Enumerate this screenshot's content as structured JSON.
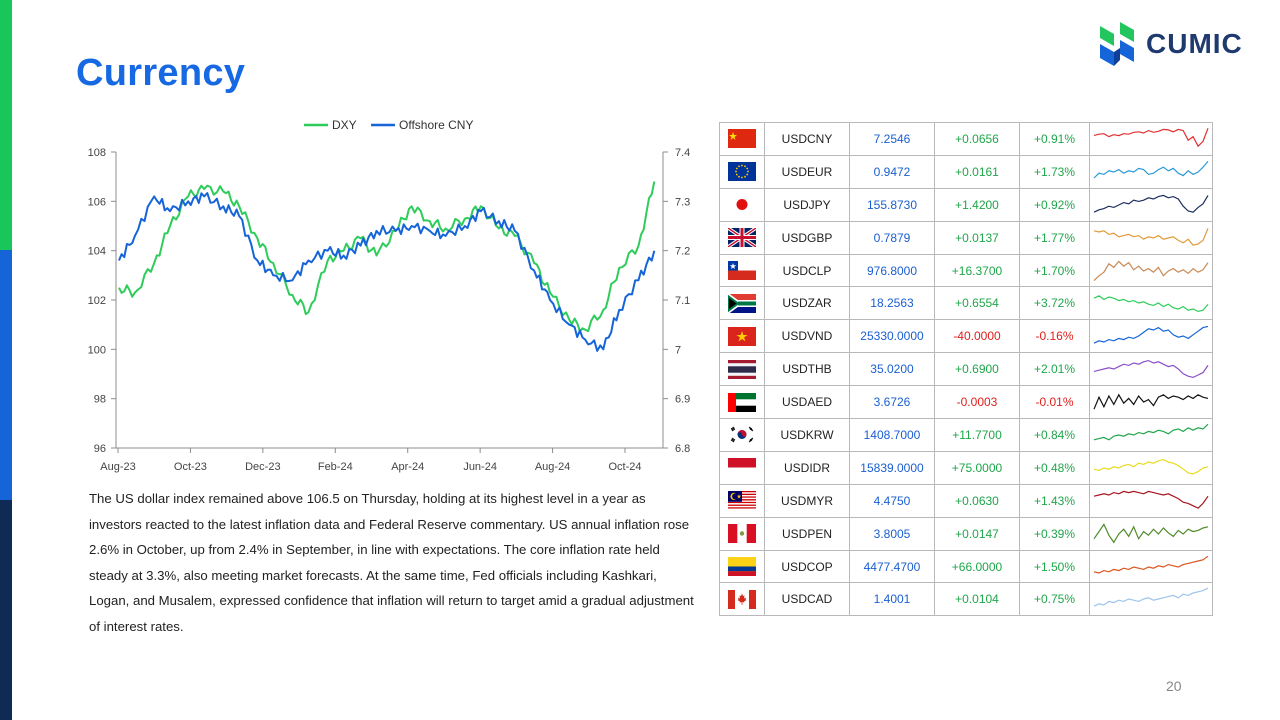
{
  "page": {
    "title": "Currency",
    "brand": "CUMIC",
    "page_number": "20",
    "description": "The US dollar index remained above 106.5 on Thursday, holding at its highest level in a year as investors reacted to the latest inflation data and Federal Reserve commentary. US annual inflation rose 2.6% in October, up from 2.4% in September, in line with expectations. The core inflation rate held steady at 3.3%, also meeting market forecasts. At the same time, Fed officials including Kashkari, Logan, and Musalem, expressed confidence that inflation will return to target amid a gradual adjustment of interest rates."
  },
  "colors": {
    "accent": "#1668e3",
    "dxy": "#2ecc5a",
    "cny": "#1565d8",
    "positive": "#1fa64a",
    "negative": "#e0201b"
  },
  "chart_data": {
    "type": "line",
    "legend_position": "top",
    "grid": false,
    "x_ticks": [
      "Aug-23",
      "Oct-23",
      "Dec-23",
      "Feb-24",
      "Apr-24",
      "Jun-24",
      "Aug-24",
      "Oct-24"
    ],
    "x_range": [
      "Aug-23",
      "Nov-24"
    ],
    "y_left": {
      "range": [
        96,
        108
      ],
      "ticks": [
        "108",
        "106",
        "104",
        "102",
        "100",
        "98",
        "96"
      ]
    },
    "y_right": {
      "range": [
        6.8,
        7.4
      ],
      "ticks": [
        "7.4",
        "7.3",
        "7.2",
        "7.1",
        "7",
        "6.9",
        "6.8"
      ]
    },
    "series": [
      {
        "name": "DXY",
        "axis": "left",
        "color": "#2ecc5a",
        "x": [
          "2023-08",
          "2023-08",
          "2023-09",
          "2023-09",
          "2023-10",
          "2023-10",
          "2023-11",
          "2023-11",
          "2023-12",
          "2023-12",
          "2024-01",
          "2024-01",
          "2024-02",
          "2024-02",
          "2024-03",
          "2024-03",
          "2024-04",
          "2024-04",
          "2024-05",
          "2024-05",
          "2024-06",
          "2024-06",
          "2024-07",
          "2024-07",
          "2024-08",
          "2024-08",
          "2024-09",
          "2024-09",
          "2024-10",
          "2024-10",
          "2024-11",
          "2024-11"
        ],
        "values": [
          102.5,
          102.3,
          103.5,
          105.0,
          106.2,
          106.5,
          106.4,
          105.8,
          104.5,
          103.5,
          102.2,
          101.5,
          103.6,
          104.0,
          104.5,
          103.8,
          104.8,
          105.8,
          105.2,
          104.9,
          105.3,
          105.8,
          104.9,
          104.6,
          103.5,
          102.3,
          101.2,
          100.8,
          101.6,
          103.3,
          104.2,
          106.8
        ]
      },
      {
        "name": "Offshore CNY",
        "axis": "right",
        "color": "#1565d8",
        "x": [
          "2023-08",
          "2023-08",
          "2023-09",
          "2023-09",
          "2023-10",
          "2023-10",
          "2023-11",
          "2023-11",
          "2023-12",
          "2023-12",
          "2024-01",
          "2024-01",
          "2024-02",
          "2024-02",
          "2024-03",
          "2024-03",
          "2024-04",
          "2024-04",
          "2024-05",
          "2024-05",
          "2024-06",
          "2024-06",
          "2024-07",
          "2024-07",
          "2024-08",
          "2024-08",
          "2024-09",
          "2024-09",
          "2024-10",
          "2024-10",
          "2024-11",
          "2024-11"
        ],
        "values": [
          7.18,
          7.23,
          7.31,
          7.28,
          7.3,
          7.31,
          7.29,
          7.27,
          7.18,
          7.15,
          7.14,
          7.18,
          7.2,
          7.19,
          7.21,
          7.24,
          7.24,
          7.25,
          7.24,
          7.23,
          7.25,
          7.28,
          7.26,
          7.24,
          7.16,
          7.1,
          7.05,
          7.02,
          7.0,
          7.08,
          7.14,
          7.2
        ]
      }
    ]
  },
  "fx_table": {
    "rows": [
      {
        "flag": "cn-flag",
        "pair": "USDCNY",
        "rate": "7.2546",
        "change": "+0.0656",
        "pct": "+0.91%",
        "color": "#e03030",
        "spark": [
          0.35,
          0.3,
          0.28,
          0.4,
          0.32,
          0.36,
          0.28,
          0.3,
          0.22,
          0.2,
          0.25,
          0.15,
          0.22,
          0.18,
          0.1,
          0.12,
          0.2,
          0.1,
          0.15,
          0.55,
          0.4,
          0.8,
          0.6,
          0.05
        ]
      },
      {
        "flag": "eu-flag",
        "pair": "USDEUR",
        "rate": "0.9472",
        "change": "+0.0161",
        "pct": "+1.73%",
        "color": "#2a9bd6",
        "spark": [
          0.75,
          0.55,
          0.6,
          0.45,
          0.5,
          0.4,
          0.55,
          0.45,
          0.5,
          0.35,
          0.4,
          0.6,
          0.55,
          0.4,
          0.3,
          0.45,
          0.35,
          0.55,
          0.65,
          0.45,
          0.6,
          0.5,
          0.3,
          0.05
        ]
      },
      {
        "flag": "jp-flag",
        "pair": "USDJPY",
        "rate": "155.8730",
        "change": "+1.4200",
        "pct": "+0.92%",
        "color": "#1b2f5e",
        "spark": [
          0.8,
          0.7,
          0.65,
          0.55,
          0.6,
          0.5,
          0.4,
          0.45,
          0.3,
          0.35,
          0.3,
          0.2,
          0.25,
          0.15,
          0.1,
          0.2,
          0.15,
          0.25,
          0.55,
          0.75,
          0.8,
          0.6,
          0.45,
          0.1
        ]
      },
      {
        "flag": "gb-flag",
        "pair": "USDGBP",
        "rate": "0.7879",
        "change": "+0.0137",
        "pct": "+1.77%",
        "color": "#e39a3a",
        "spark": [
          0.2,
          0.25,
          0.2,
          0.35,
          0.3,
          0.45,
          0.4,
          0.35,
          0.45,
          0.4,
          0.55,
          0.45,
          0.5,
          0.4,
          0.55,
          0.5,
          0.45,
          0.6,
          0.7,
          0.55,
          0.8,
          0.75,
          0.6,
          0.1
        ]
      },
      {
        "flag": "cl-flag",
        "pair": "USDCLP",
        "rate": "976.8000",
        "change": "+16.3700",
        "pct": "+1.70%",
        "color": "#c98a55",
        "spark": [
          0.9,
          0.7,
          0.55,
          0.2,
          0.35,
          0.1,
          0.3,
          0.15,
          0.45,
          0.3,
          0.5,
          0.4,
          0.55,
          0.35,
          0.7,
          0.5,
          0.4,
          0.55,
          0.45,
          0.6,
          0.4,
          0.55,
          0.45,
          0.15
        ]
      },
      {
        "flag": "za-flag",
        "pair": "USDZAR",
        "rate": "18.2563",
        "change": "+0.6554",
        "pct": "+3.72%",
        "color": "#2ecc5a",
        "spark": [
          0.3,
          0.2,
          0.35,
          0.25,
          0.3,
          0.4,
          0.35,
          0.45,
          0.4,
          0.5,
          0.45,
          0.55,
          0.6,
          0.5,
          0.65,
          0.55,
          0.7,
          0.75,
          0.65,
          0.8,
          0.75,
          0.85,
          0.8,
          0.55
        ]
      },
      {
        "flag": "vn-flag",
        "pair": "USDVND",
        "rate": "25330.0000",
        "change": "-40.0000",
        "pct": "-0.16%",
        "color": "#1565d8",
        "spark": [
          0.8,
          0.7,
          0.75,
          0.65,
          0.7,
          0.6,
          0.65,
          0.55,
          0.6,
          0.5,
          0.35,
          0.2,
          0.25,
          0.15,
          0.3,
          0.25,
          0.45,
          0.55,
          0.5,
          0.6,
          0.45,
          0.3,
          0.15,
          0.1
        ]
      },
      {
        "flag": "th-flag",
        "pair": "USDTHB",
        "rate": "35.0200",
        "change": "+0.6900",
        "pct": "+2.01%",
        "color": "#8a4fc9",
        "spark": [
          0.6,
          0.55,
          0.5,
          0.45,
          0.5,
          0.4,
          0.3,
          0.35,
          0.25,
          0.3,
          0.2,
          0.15,
          0.25,
          0.2,
          0.3,
          0.4,
          0.35,
          0.5,
          0.7,
          0.8,
          0.85,
          0.75,
          0.65,
          0.35
        ]
      },
      {
        "flag": "ae-flag",
        "pair": "USDAED",
        "rate": "3.6726",
        "change": "-0.0003",
        "pct": "-0.01%",
        "color": "#111111",
        "spark": [
          0.8,
          0.3,
          0.7,
          0.25,
          0.6,
          0.2,
          0.55,
          0.35,
          0.6,
          0.25,
          0.5,
          0.4,
          0.65,
          0.3,
          0.2,
          0.35,
          0.25,
          0.3,
          0.4,
          0.25,
          0.35,
          0.2,
          0.3,
          0.35
        ]
      },
      {
        "flag": "kr-flag",
        "pair": "USDKRW",
        "rate": "1408.7000",
        "change": "+11.7700",
        "pct": "+0.84%",
        "color": "#1fa64a",
        "spark": [
          0.7,
          0.65,
          0.6,
          0.7,
          0.55,
          0.5,
          0.55,
          0.45,
          0.5,
          0.4,
          0.45,
          0.35,
          0.4,
          0.3,
          0.35,
          0.45,
          0.3,
          0.25,
          0.35,
          0.2,
          0.3,
          0.2,
          0.25,
          0.05
        ]
      },
      {
        "flag": "id-flag",
        "pair": "USDIDR",
        "rate": "15839.0000",
        "change": "+75.0000",
        "pct": "+0.48%",
        "color": "#e8dc1e",
        "spark": [
          0.55,
          0.6,
          0.5,
          0.55,
          0.45,
          0.5,
          0.4,
          0.35,
          0.45,
          0.3,
          0.35,
          0.25,
          0.3,
          0.2,
          0.15,
          0.25,
          0.3,
          0.4,
          0.55,
          0.7,
          0.75,
          0.65,
          0.5,
          0.45
        ]
      },
      {
        "flag": "my-flag",
        "pair": "USDMYR",
        "rate": "4.4750",
        "change": "+0.0630",
        "pct": "+1.43%",
        "color": "#a5141e",
        "spark": [
          0.3,
          0.25,
          0.2,
          0.25,
          0.15,
          0.2,
          0.1,
          0.15,
          0.1,
          0.15,
          0.2,
          0.1,
          0.15,
          0.2,
          0.25,
          0.2,
          0.3,
          0.4,
          0.55,
          0.6,
          0.7,
          0.8,
          0.6,
          0.3
        ]
      },
      {
        "flag": "pe-flag",
        "pair": "USDPEN",
        "rate": "3.8005",
        "change": "+0.0147",
        "pct": "+0.39%",
        "color": "#4f8a2a",
        "spark": [
          0.7,
          0.4,
          0.1,
          0.55,
          0.85,
          0.5,
          0.3,
          0.6,
          0.2,
          0.7,
          0.4,
          0.55,
          0.3,
          0.5,
          0.25,
          0.45,
          0.6,
          0.35,
          0.5,
          0.3,
          0.4,
          0.35,
          0.25,
          0.2
        ]
      },
      {
        "flag": "co-flag",
        "pair": "USDCOP",
        "rate": "4477.4700",
        "change": "+66.0000",
        "pct": "+1.50%",
        "color": "#d9541e",
        "spark": [
          0.7,
          0.75,
          0.65,
          0.7,
          0.6,
          0.65,
          0.55,
          0.6,
          0.5,
          0.55,
          0.6,
          0.5,
          0.55,
          0.45,
          0.5,
          0.4,
          0.45,
          0.5,
          0.4,
          0.35,
          0.3,
          0.25,
          0.2,
          0.05
        ]
      },
      {
        "flag": "ca-flag",
        "pair": "USDCAD",
        "rate": "1.4001",
        "change": "+0.0104",
        "pct": "+0.75%",
        "color": "#9fc4ea",
        "spark": [
          0.8,
          0.7,
          0.75,
          0.6,
          0.65,
          0.55,
          0.6,
          0.5,
          0.55,
          0.6,
          0.5,
          0.45,
          0.55,
          0.5,
          0.45,
          0.4,
          0.35,
          0.45,
          0.3,
          0.35,
          0.25,
          0.2,
          0.15,
          0.05
        ]
      }
    ]
  }
}
